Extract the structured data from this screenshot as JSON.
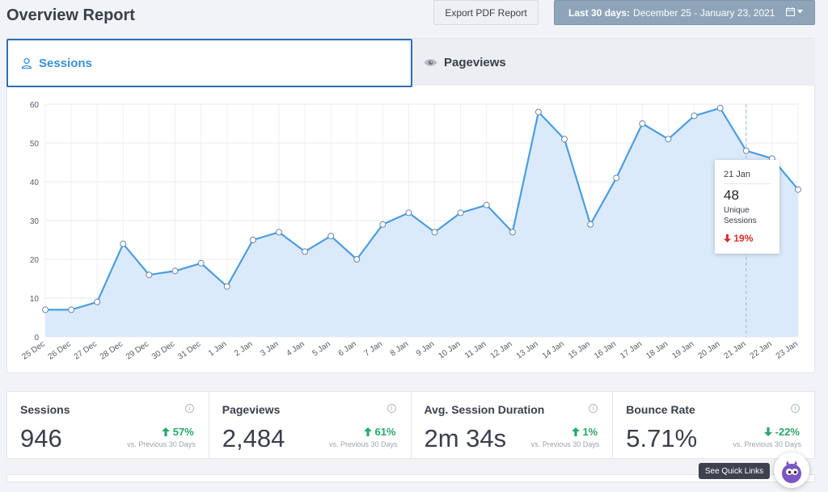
{
  "header": {
    "title": "Overview Report",
    "export_label": "Export PDF Report",
    "date_range_prefix": "Last 30 days:",
    "date_range_value": "December 25 - January 23, 2021"
  },
  "tabs": {
    "sessions_label": "Sessions",
    "pageviews_label": "Pageviews"
  },
  "chart_data": {
    "type": "area",
    "categories": [
      "25 Dec",
      "26 Dec",
      "27 Dec",
      "28 Dec",
      "29 Dec",
      "30 Dec",
      "31 Dec",
      "1 Jan",
      "2 Jan",
      "3 Jan",
      "4 Jan",
      "5 Jan",
      "6 Jan",
      "7 Jan",
      "8 Jan",
      "9 Jan",
      "10 Jan",
      "11 Jan",
      "12 Jan",
      "13 Jan",
      "14 Jan",
      "15 Jan",
      "16 Jan",
      "17 Jan",
      "18 Jan",
      "19 Jan",
      "20 Jan",
      "21 Jan",
      "22 Jan",
      "23 Jan"
    ],
    "series": [
      {
        "values": [
          7,
          7,
          9,
          24,
          16,
          17,
          19,
          13,
          25,
          27,
          22,
          26,
          20,
          29,
          32,
          27,
          32,
          34,
          27,
          58,
          51,
          29,
          41,
          55,
          51,
          57,
          59,
          48,
          46,
          38
        ]
      }
    ],
    "ylim": [
      0,
      60
    ],
    "yticks": [
      0,
      10,
      20,
      30,
      40,
      50,
      60
    ],
    "grid": true,
    "line_color": "#4a9ee0",
    "fill_color": "#dbeafb"
  },
  "tooltip": {
    "date": "21 Jan",
    "value": "48",
    "label": "Unique Sessions",
    "change": "19%"
  },
  "stats": [
    {
      "label": "Sessions",
      "value": "946",
      "change": "57%",
      "direction": "up",
      "vs": "vs. Previous 30 Days"
    },
    {
      "label": "Pageviews",
      "value": "2,484",
      "change": "61%",
      "direction": "up",
      "vs": "vs. Previous 30 Days"
    },
    {
      "label": "Avg. Session Duration",
      "value": "2m 34s",
      "change": "1%",
      "direction": "up",
      "vs": "vs. Previous 30 Days"
    },
    {
      "label": "Bounce Rate",
      "value": "5.71%",
      "change": "-22%",
      "direction": "down",
      "vs": "vs. Previous 30 Days"
    }
  ],
  "quick_links_label": "See Quick Links",
  "colors": {
    "accent": "#2d6eb8",
    "up": "#27a86a",
    "down_negative": "#e02b2b",
    "date_range_bg": "#8ea4b8"
  }
}
